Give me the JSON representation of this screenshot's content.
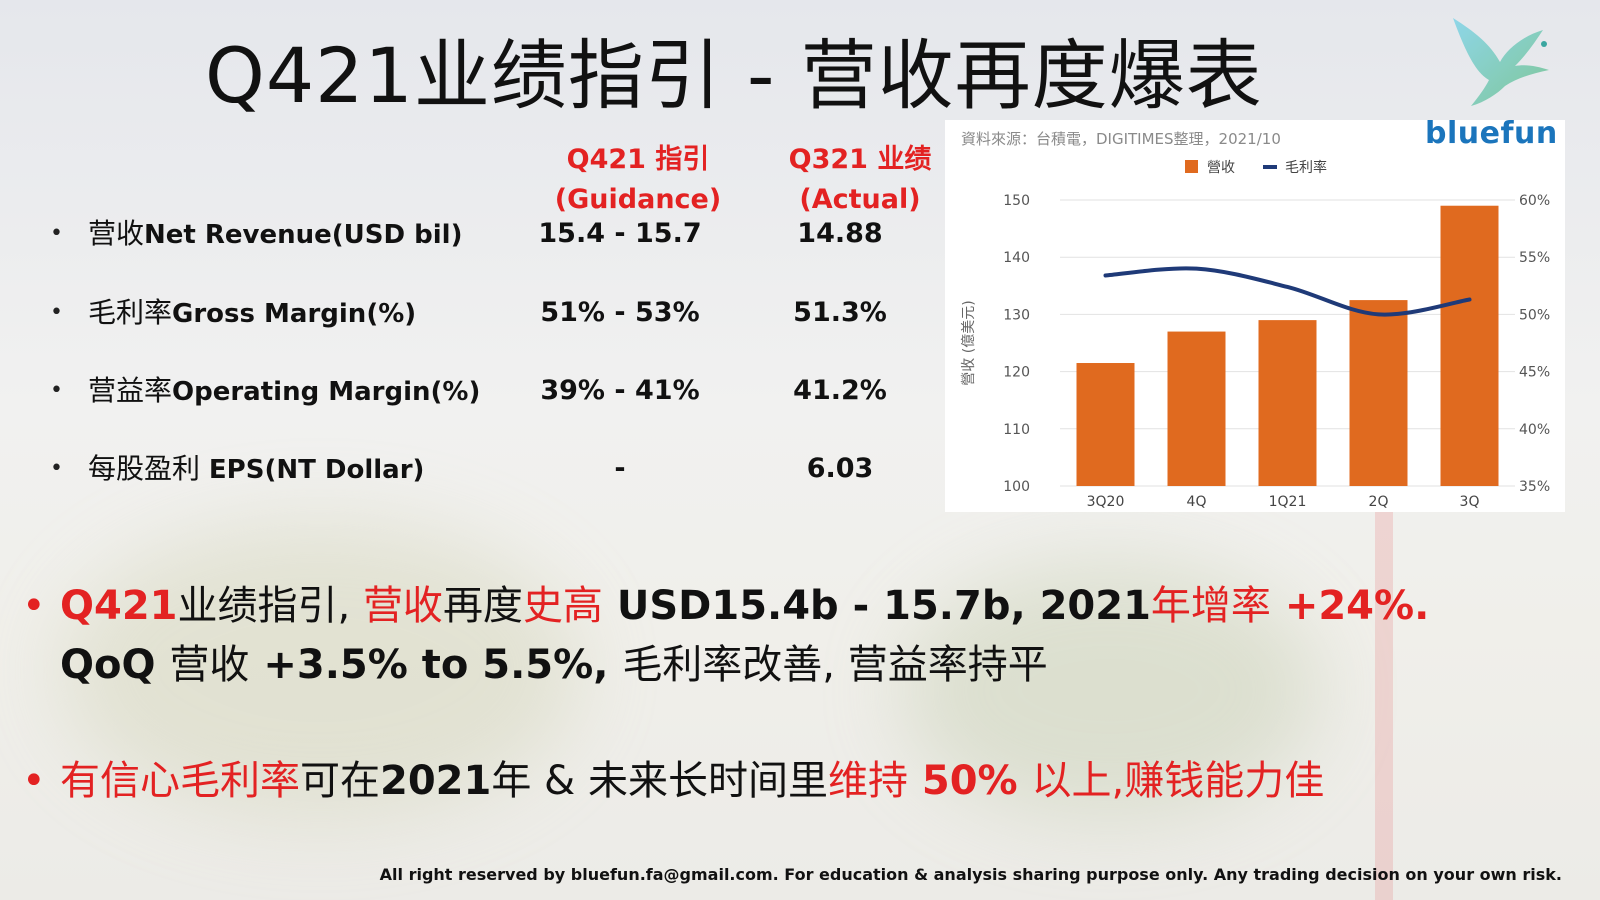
{
  "title": "Q421业绩指引 - 营收再度爆表",
  "columns": {
    "guidance": {
      "line1": "Q421 指引",
      "line2": "(Guidance)"
    },
    "actual": {
      "line1": "Q321 业绩",
      "line2": "(Actual)"
    }
  },
  "metrics": [
    {
      "label_zh": "营收",
      "label_en": "Net Revenue(USD bil)",
      "guidance": "15.4 - 15.7",
      "actual": "14.88"
    },
    {
      "label_zh": "毛利率",
      "label_en": "Gross Margin(%)",
      "guidance": "51% - 53%",
      "actual": "51.3%"
    },
    {
      "label_zh": "营益率",
      "label_en": "Operating Margin(%)",
      "guidance": "39% - 41%",
      "actual": "41.2%"
    },
    {
      "label_zh": "每股盈利 ",
      "label_en": "EPS(NT Dollar)",
      "guidance": "-",
      "actual": "6.03"
    }
  ],
  "chart_panel": {
    "source": "資料來源：台積電，DIGITIMES整理，2021/10",
    "brand": "bluefun"
  },
  "chart_data": {
    "type": "bar",
    "categories": [
      "3Q20",
      "4Q",
      "1Q21",
      "2Q",
      "3Q"
    ],
    "series": [
      {
        "name": "營收",
        "kind": "bar",
        "axis": "left",
        "values": [
          121.5,
          127,
          129,
          132.5,
          149
        ],
        "color": "#e06a1f"
      },
      {
        "name": "毛利率",
        "kind": "line",
        "axis": "right",
        "values": [
          53.4,
          54.0,
          52.4,
          50.0,
          51.3
        ],
        "color": "#1f3a78"
      }
    ],
    "ylabel": "營收 (億美元)",
    "ylim": [
      100,
      150
    ],
    "yticks": [
      "100",
      "110",
      "120",
      "130",
      "140",
      "150"
    ],
    "y2lim": [
      35,
      60
    ],
    "y2ticks": [
      "35%",
      "40%",
      "45%",
      "50%",
      "55%",
      "60%"
    ],
    "legend": "top-center",
    "grid": true
  },
  "points": {
    "p1": {
      "s1": "Q421",
      "s2": "业绩指引, ",
      "s3": "营收",
      "s4": "再度",
      "s5": "史高",
      "s6": " USD15.4b - 15.7b, 2021",
      "s7": "年增率",
      "s8": " +24%."
    },
    "p1b": {
      "s1": "QoQ ",
      "s2": "营收",
      "s3": " +3.5% to 5.5%, ",
      "s4": "毛利率改善, 营益率持平"
    },
    "p3": {
      "s1": "有信心毛利率",
      "s2": "可在",
      "s3": "2021",
      "s4": "年 & 未来长时间里",
      "s5": "维持",
      "s6": " 50% ",
      "s7": "以上,赚钱能力佳"
    }
  },
  "footer": "All right reserved by bluefun.fa@gmail.com. For education & analysis sharing purpose only. Any trading decision on your own risk.",
  "colors": {
    "accent_red": "#e32222",
    "bar_orange": "#e06a1f",
    "line_navy": "#1f3a78",
    "brand_blue": "#1b75bc"
  }
}
